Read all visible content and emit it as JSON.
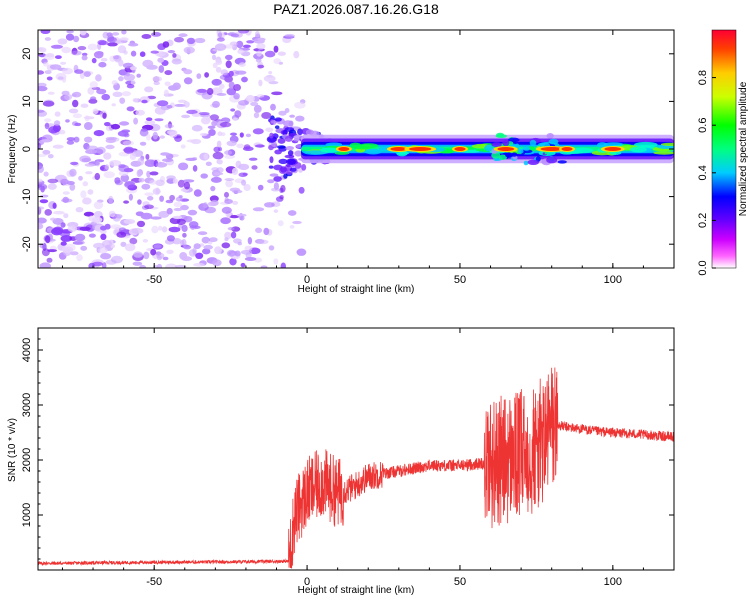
{
  "title": "PAZ1.2026.087.16.26.G18",
  "chart_data": [
    {
      "type": "heatmap",
      "xlabel": "Height of straight line (km)",
      "ylabel": "Frequency (Hz)",
      "xlim": [
        -88,
        120
      ],
      "ylim": [
        -25,
        25
      ],
      "xticks": [
        -50,
        0,
        50,
        100
      ],
      "yticks": [
        -20,
        -10,
        0,
        10,
        20
      ],
      "colorbar": {
        "label": "Normalized spectral amplitude",
        "range": [
          0,
          1
        ],
        "ticks": [
          "0.0",
          "0.2",
          "0.4",
          "0.6",
          "0.8"
        ],
        "tick_values": [
          0,
          0.2,
          0.4,
          0.6,
          0.8
        ],
        "colors": [
          "#ffffff",
          "#ff00ff",
          "#8000ff",
          "#0000ff",
          "#00ffff",
          "#00ff00",
          "#ffff00",
          "#ff8000",
          "#ff0000"
        ]
      },
      "description_points": {
        "noise_region_x": [
          -88,
          0
        ],
        "ridge_frequency": 0,
        "ridge_peak_heights": [
          12,
          30,
          37,
          50,
          65,
          80,
          85,
          100
        ]
      }
    },
    {
      "type": "line",
      "xlabel": "Height of straight line (km)",
      "ylabel": "SNR (10 * v/v)",
      "xlim": [
        -88,
        120
      ],
      "ylim": [
        0,
        4400
      ],
      "xticks": [
        -50,
        0,
        50,
        100
      ],
      "yticks": [
        1000,
        2000,
        3000,
        4000
      ],
      "color": "#ee3333",
      "trend": {
        "x": [
          -88,
          -50,
          -20,
          -6,
          -4,
          0,
          5,
          10,
          15,
          20,
          30,
          40,
          50,
          60,
          65,
          70,
          75,
          78,
          80,
          85,
          95,
          105,
          120
        ],
        "y": [
          120,
          140,
          150,
          160,
          1000,
          1400,
          1600,
          1400,
          1500,
          1700,
          1800,
          1900,
          1900,
          1950,
          2000,
          2100,
          2200,
          2400,
          2650,
          2600,
          2520,
          2480,
          2420
        ]
      }
    }
  ]
}
